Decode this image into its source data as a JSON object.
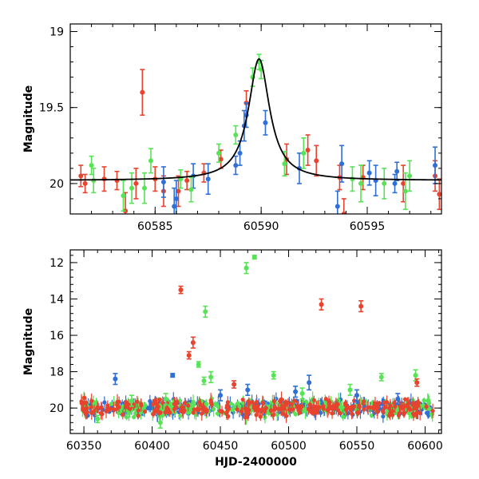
{
  "chart_data": [
    {
      "type": "scatter",
      "panel": "top",
      "xlabel": "",
      "ylabel": "Magnitude",
      "xlim": [
        60581,
        60598.5
      ],
      "ylim": [
        20.2,
        18.95
      ],
      "y_inverted": true,
      "x_ticks": [
        60585,
        60590,
        60595
      ],
      "x_tick_labels": [
        "60585",
        "60590",
        "60595"
      ],
      "y_ticks": [
        19,
        19.5,
        20
      ],
      "y_tick_labels": [
        "19",
        "19.5",
        "20"
      ],
      "model_curve": {
        "color": "#000000",
        "peak_x": 60589.9,
        "peak_mag": 19.18,
        "baseline_mag": 19.98,
        "width": 0.9
      },
      "series": [
        {
          "color": "#e8432e",
          "points": [
            [
              60581.5,
              19.95,
              0.07
            ],
            [
              60581.7,
              20.0,
              0.06
            ],
            [
              60582.6,
              19.97,
              0.08
            ],
            [
              60583.2,
              19.98,
              0.06
            ],
            [
              60583.6,
              20.18,
              0.12
            ],
            [
              60584.1,
              20.0,
              0.1
            ],
            [
              60584.4,
              19.4,
              0.15
            ],
            [
              60585.0,
              19.97,
              0.08
            ],
            [
              60585.4,
              20.05,
              0.1
            ],
            [
              60586.1,
              20.05,
              0.1
            ],
            [
              60586.5,
              19.98,
              0.06
            ],
            [
              60587.3,
              19.93,
              0.06
            ],
            [
              60588.1,
              19.84,
              0.06
            ],
            [
              60589.3,
              19.47,
              0.08
            ],
            [
              60591.2,
              19.84,
              0.1
            ],
            [
              60592.2,
              19.78,
              0.1
            ],
            [
              60592.6,
              19.85,
              0.1
            ],
            [
              60593.7,
              19.96,
              0.08
            ],
            [
              60593.9,
              20.2,
              0.1
            ],
            [
              60594.8,
              19.96,
              0.08
            ],
            [
              60596.7,
              20.0,
              0.12
            ],
            [
              60598.2,
              19.95,
              0.1
            ],
            [
              60598.4,
              20.07,
              0.1
            ]
          ]
        },
        {
          "color": "#2f6fd6",
          "points": [
            [
              60585.4,
              19.99,
              0.1
            ],
            [
              60585.9,
              20.15,
              0.12
            ],
            [
              60586.0,
              20.1,
              0.12
            ],
            [
              60586.8,
              19.95,
              0.08
            ],
            [
              60587.5,
              19.97,
              0.1
            ],
            [
              60588.8,
              19.88,
              0.06
            ],
            [
              60589.0,
              19.8,
              0.08
            ],
            [
              60589.2,
              19.62,
              0.1
            ],
            [
              60589.3,
              19.55,
              0.08
            ],
            [
              60590.2,
              19.6,
              0.08
            ],
            [
              60591.8,
              19.9,
              0.1
            ],
            [
              60593.6,
              20.15,
              0.1
            ],
            [
              60593.8,
              19.87,
              0.12
            ],
            [
              60595.1,
              19.93,
              0.08
            ],
            [
              60595.4,
              19.98,
              0.1
            ],
            [
              60596.3,
              20.0,
              0.06
            ],
            [
              60596.4,
              19.92,
              0.06
            ],
            [
              60598.2,
              19.88,
              0.12
            ]
          ]
        },
        {
          "color": "#57e356",
          "points": [
            [
              60582.0,
              19.88,
              0.06
            ],
            [
              60582.1,
              19.98,
              0.08
            ],
            [
              60583.5,
              20.08,
              0.1
            ],
            [
              60583.9,
              20.03,
              0.1
            ],
            [
              60584.5,
              20.03,
              0.1
            ],
            [
              60584.8,
              19.85,
              0.08
            ],
            [
              60586.2,
              19.97,
              0.06
            ],
            [
              60586.7,
              20.04,
              0.08
            ],
            [
              60588.0,
              19.8,
              0.06
            ],
            [
              60588.8,
              19.68,
              0.06
            ],
            [
              60589.6,
              19.3,
              0.06
            ],
            [
              60589.9,
              19.2,
              0.05
            ],
            [
              60590.0,
              19.25,
              0.06
            ],
            [
              60591.1,
              19.87,
              0.08
            ],
            [
              60592.0,
              19.8,
              0.1
            ],
            [
              60594.3,
              19.97,
              0.08
            ],
            [
              60594.7,
              20.0,
              0.12
            ],
            [
              60595.8,
              20.0,
              0.1
            ],
            [
              60596.8,
              20.05,
              0.12
            ],
            [
              60597.0,
              19.95,
              0.1
            ]
          ]
        }
      ]
    },
    {
      "type": "scatter",
      "panel": "bottom",
      "xlabel": "HJD-2400000",
      "ylabel": "Magnitude",
      "xlim": [
        60340,
        60612
      ],
      "ylim": [
        21.4,
        11.3
      ],
      "y_inverted": true,
      "x_ticks": [
        60350,
        60400,
        60450,
        60500,
        60550,
        60600
      ],
      "x_tick_labels": [
        "60350",
        "60400",
        "60450",
        "60500",
        "60550",
        "60600"
      ],
      "y_ticks": [
        12,
        14,
        16,
        18,
        20
      ],
      "y_tick_labels": [
        "12",
        "14",
        "16",
        "18",
        "20"
      ],
      "baseline_cloud": {
        "x_range": [
          60348,
          60606
        ],
        "mag_center": 20.0,
        "mag_spread": 0.45
      },
      "series": [
        {
          "color": "#57e356",
          "points": [
            [
              60469,
              12.3,
              0.3
            ],
            [
              60475,
              11.7,
              0.1
            ],
            [
              60439,
              14.7,
              0.3
            ],
            [
              60434,
              17.6,
              0.15
            ],
            [
              60438,
              18.5,
              0.2
            ],
            [
              60443,
              18.3,
              0.3
            ],
            [
              60489,
              18.2,
              0.2
            ],
            [
              60510,
              19.2,
              0.3
            ],
            [
              60545,
              19.0,
              0.3
            ],
            [
              60568,
              18.3,
              0.2
            ],
            [
              60593,
              18.2,
              0.3
            ],
            [
              60385,
              19.6,
              0.3
            ],
            [
              60410,
              19.5,
              0.3
            ],
            [
              60360,
              20.6,
              0.2
            ],
            [
              60406,
              20.8,
              0.3
            ]
          ]
        },
        {
          "color": "#e8432e",
          "points": [
            [
              60421,
              13.5,
              0.2
            ],
            [
              60430,
              16.4,
              0.3
            ],
            [
              60427,
              17.1,
              0.2
            ],
            [
              60524,
              14.3,
              0.3
            ],
            [
              60553,
              14.4,
              0.3
            ],
            [
              60460,
              18.7,
              0.2
            ],
            [
              60594,
              18.6,
              0.2
            ]
          ]
        },
        {
          "color": "#2f6fd6",
          "points": [
            [
              60373,
              18.4,
              0.3
            ],
            [
              60415,
              18.2,
              0.1
            ],
            [
              60515,
              18.6,
              0.4
            ],
            [
              60505,
              19.1,
              0.3
            ],
            [
              60450,
              19.3,
              0.3
            ],
            [
              60470,
              19.0,
              0.3
            ],
            [
              60550,
              19.3,
              0.3
            ],
            [
              60580,
              19.5,
              0.3
            ]
          ]
        }
      ]
    }
  ]
}
